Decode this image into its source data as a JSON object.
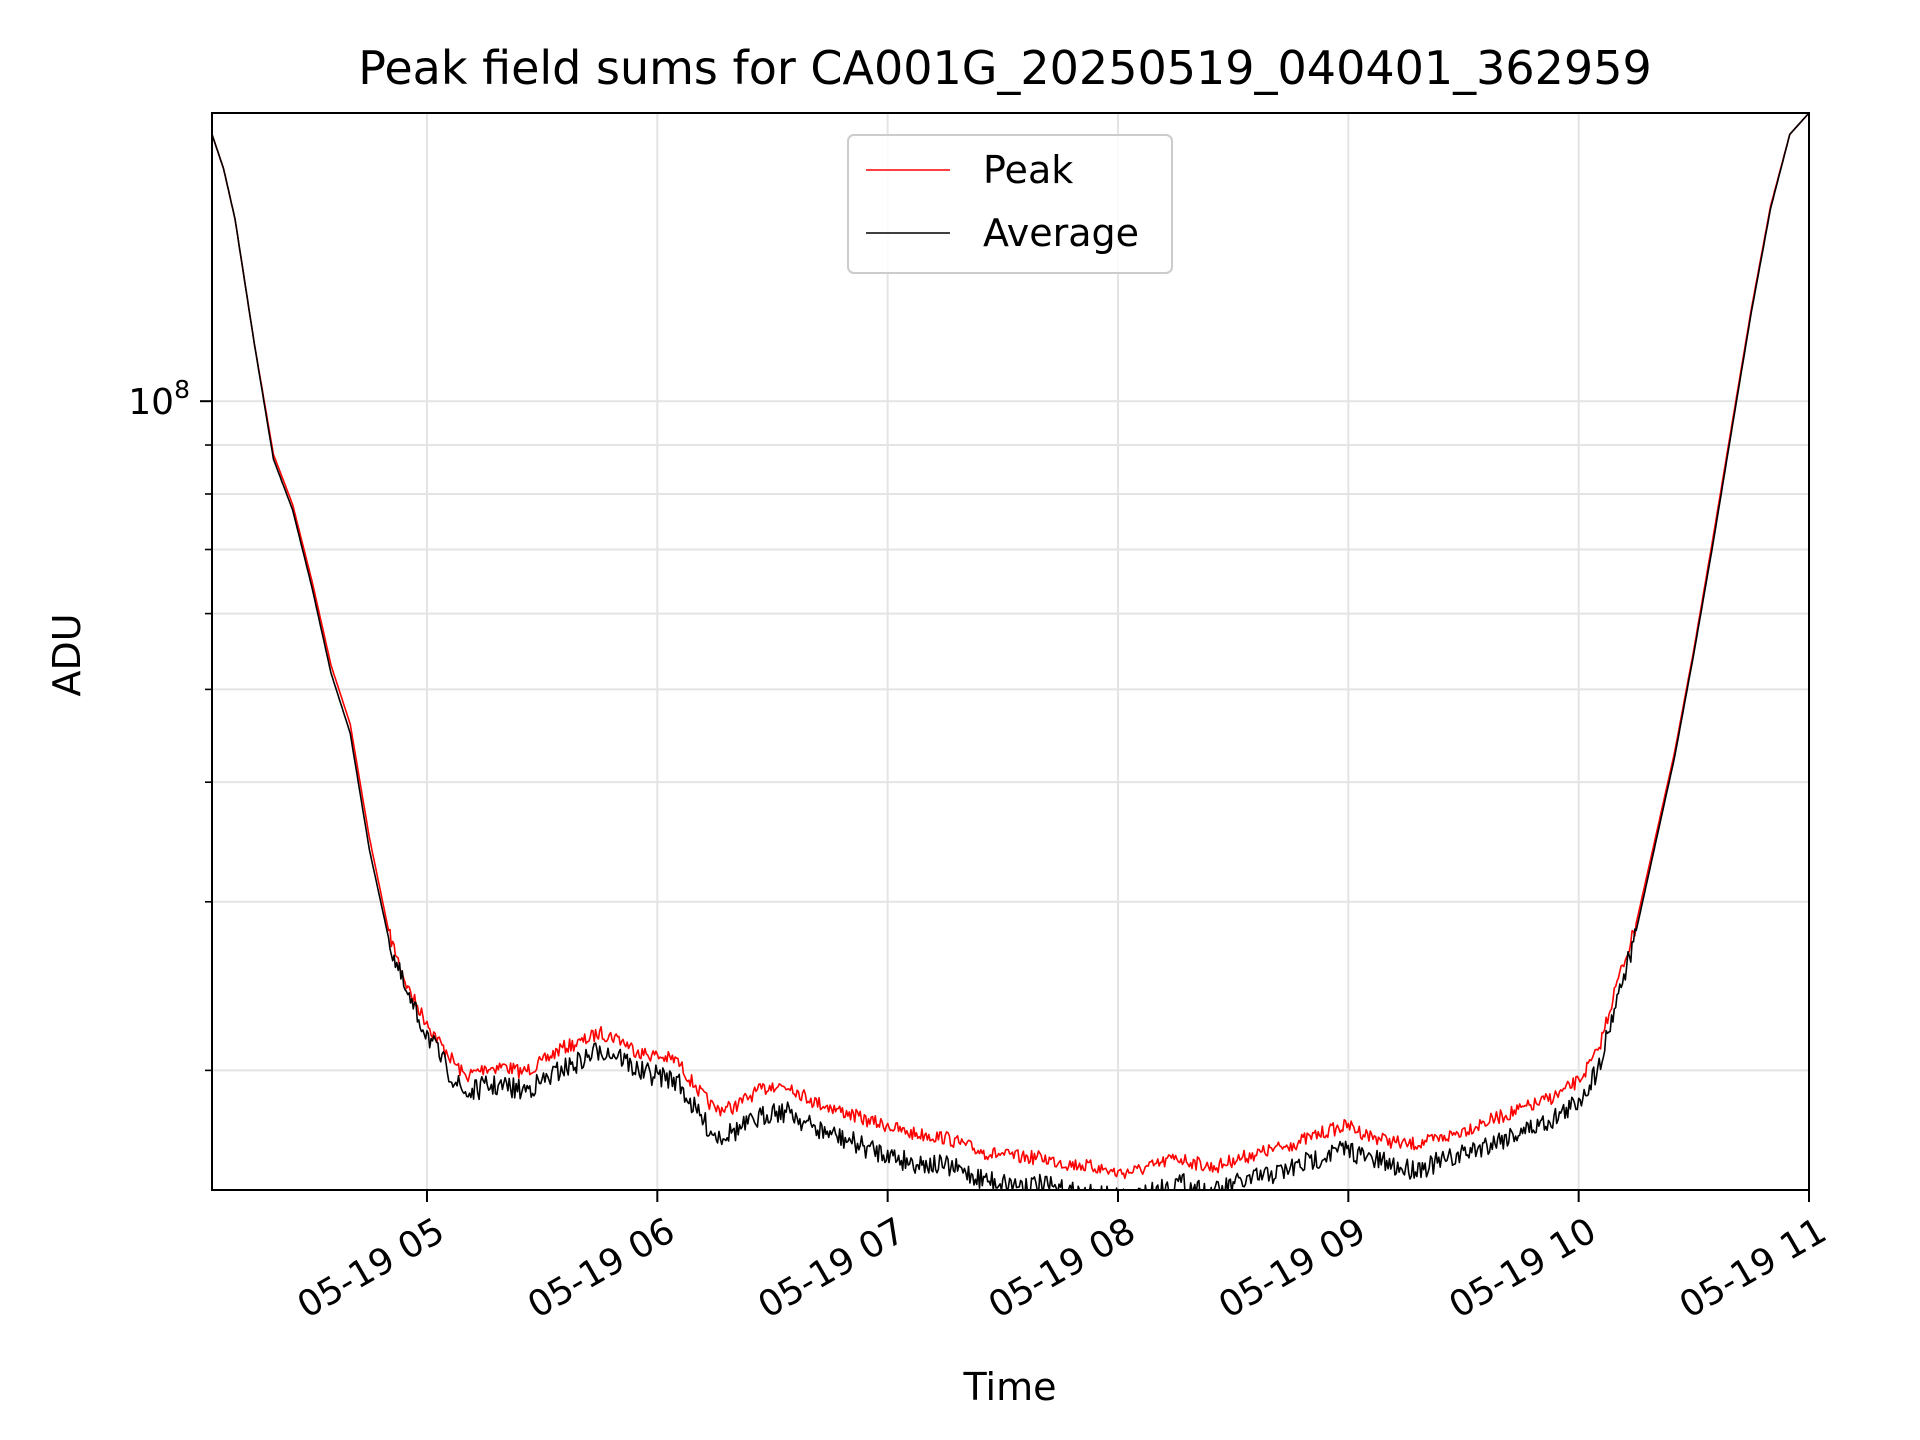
{
  "chart_data": {
    "type": "line",
    "title": "Peak field sums for CA001G_20250519_040401_362959",
    "xlabel": "Time",
    "ylabel": "ADU",
    "y_scale": "log",
    "x_range": [
      "2025-05-19 04:04",
      "2025-05-19 11:00"
    ],
    "ylim": [
      15000000,
      200000000
    ],
    "x_ticks": [
      "05-19 05",
      "05-19 06",
      "05-19 07",
      "05-19 08",
      "05-19 09",
      "05-19 10",
      "05-19 11"
    ],
    "y_major_ticks": [
      {
        "value": 100000000,
        "base": "10",
        "exponent": "8"
      }
    ],
    "y_minor_ticks": [
      20000000,
      30000000,
      40000000,
      50000000,
      60000000,
      70000000,
      80000000,
      90000000
    ],
    "grid": true,
    "legend_position": "upper center",
    "colors": {
      "Peak": "#ff0000",
      "Average": "#000000"
    },
    "x": [
      "04:04",
      "04:07",
      "04:10",
      "04:15",
      "04:20",
      "04:25",
      "04:30",
      "04:35",
      "04:40",
      "04:45",
      "04:50",
      "04:55",
      "05:00",
      "05:05",
      "05:10",
      "05:15",
      "05:20",
      "05:25",
      "05:30",
      "05:35",
      "05:40",
      "05:45",
      "05:50",
      "05:55",
      "06:00",
      "06:05",
      "06:10",
      "06:15",
      "06:20",
      "06:25",
      "06:30",
      "06:35",
      "06:40",
      "06:45",
      "06:50",
      "06:55",
      "07:00",
      "07:05",
      "07:10",
      "07:15",
      "07:20",
      "07:25",
      "07:30",
      "07:35",
      "07:40",
      "07:45",
      "07:50",
      "07:55",
      "08:00",
      "08:05",
      "08:10",
      "08:15",
      "08:20",
      "08:25",
      "08:30",
      "08:35",
      "08:40",
      "08:45",
      "08:50",
      "08:55",
      "09:00",
      "09:05",
      "09:10",
      "09:15",
      "09:20",
      "09:25",
      "09:30",
      "09:35",
      "09:40",
      "09:45",
      "09:50",
      "09:55",
      "10:00",
      "10:05",
      "10:10",
      "10:15",
      "10:20",
      "10:25",
      "10:30",
      "10:35",
      "10:40",
      "10:45",
      "10:50",
      "10:55",
      "11:00"
    ],
    "series": [
      {
        "name": "Peak",
        "values": [
          190000000,
          175000000,
          155000000,
          115000000,
          88000000,
          78000000,
          65000000,
          53000000,
          46000000,
          35000000,
          28000000,
          24500000,
          22500000,
          21000000,
          19800000,
          20200000,
          20300000,
          20000000,
          20500000,
          21200000,
          21500000,
          22000000,
          21700000,
          21000000,
          20800000,
          20600000,
          19300000,
          18300000,
          18400000,
          19000000,
          19400000,
          19300000,
          18700000,
          18400000,
          18100000,
          17800000,
          17600000,
          17300000,
          17200000,
          17100000,
          16800000,
          16500000,
          16400000,
          16300000,
          16300000,
          16100000,
          16000000,
          15900000,
          15700000,
          15800000,
          16000000,
          16300000,
          16100000,
          15900000,
          16200000,
          16400000,
          16600000,
          16800000,
          17100000,
          17400000,
          17600000,
          17200000,
          17000000,
          16800000,
          16900000,
          17100000,
          17400000,
          17700000,
          18000000,
          18300000,
          18600000,
          19000000,
          19600000,
          21000000,
          24800000,
          28500000,
          35000000,
          43000000,
          55000000,
          72000000,
          95000000,
          125000000,
          160000000,
          190000000,
          200000000
        ]
      },
      {
        "name": "Average",
        "values": [
          190000000,
          175000000,
          155000000,
          115000000,
          87000000,
          77000000,
          64000000,
          52000000,
          45000000,
          34000000,
          27500000,
          24000000,
          22000000,
          20300000,
          19000000,
          19400000,
          19400000,
          19200000,
          19600000,
          20200000,
          20600000,
          21200000,
          20900000,
          20100000,
          19900000,
          19700000,
          18300000,
          17200000,
          17400000,
          17800000,
          18300000,
          18200000,
          17600000,
          17300000,
          17000000,
          16700000,
          16500000,
          16200000,
          16100000,
          16000000,
          15800000,
          15500000,
          15400000,
          15300000,
          15300000,
          15100000,
          15000000,
          14900000,
          14800000,
          14900000,
          15100000,
          15400000,
          15200000,
          15000000,
          15300000,
          15500000,
          15700000,
          15900000,
          16200000,
          16500000,
          16700000,
          16300000,
          16100000,
          15900000,
          16000000,
          16200000,
          16500000,
          16800000,
          17100000,
          17400000,
          17700000,
          18100000,
          18700000,
          20200000,
          24000000,
          28000000,
          34500000,
          42500000,
          54500000,
          71000000,
          94000000,
          124000000,
          159000000,
          190000000,
          200000000
        ]
      }
    ]
  }
}
